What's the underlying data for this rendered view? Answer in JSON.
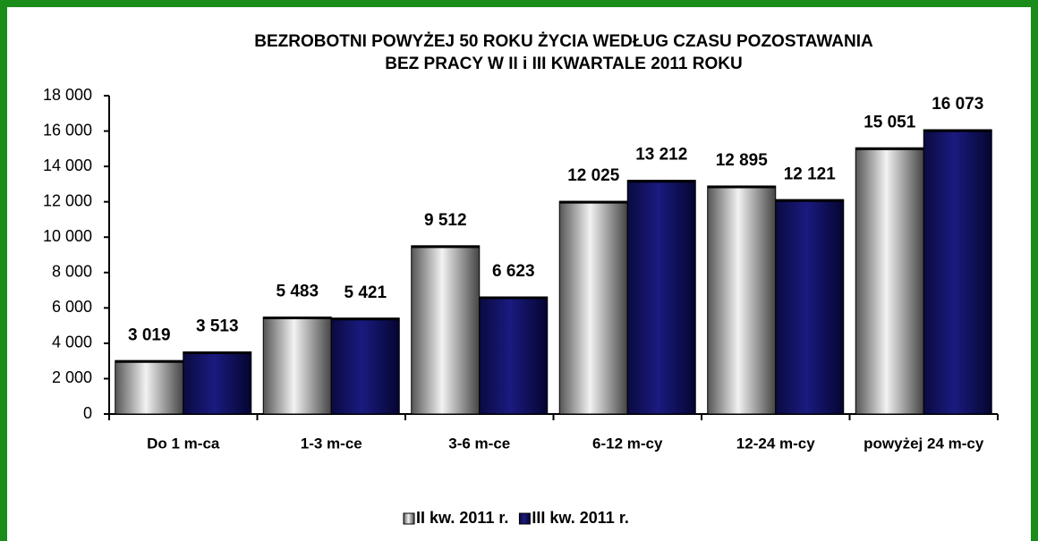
{
  "chart_data": {
    "type": "bar",
    "title": "BEZROBOTNI  POWYŻEJ 50 ROKU  ŻYCIA  WEDŁUG  CZASU POZOSTAWANIA",
    "subtitle": "BEZ PRACY W II i III KWARTALE 2011 ROKU",
    "categories": [
      "Do 1 m-ca",
      "1-3 m-ce",
      "3-6 m-ce",
      "6-12 m-cy",
      "12-24 m-cy",
      "powyżej 24 m-cy"
    ],
    "series": [
      {
        "name": "II kw. 2011 r.",
        "color": "#a0a0a0",
        "values": [
          3019,
          5483,
          9512,
          12025,
          12895,
          15051
        ],
        "value_labels": [
          "3 019",
          "5 483",
          "9 512",
          "12 025",
          "12 895",
          "15 051"
        ]
      },
      {
        "name": "III kw. 2011 r.",
        "color": "#1a1a80",
        "values": [
          3513,
          5421,
          6623,
          13212,
          12121,
          16073
        ],
        "value_labels": [
          "3 513",
          "5 421",
          "6 623",
          "13 212",
          "12 121",
          "16 073"
        ]
      }
    ],
    "ylim": [
      0,
      18000
    ],
    "yticks": [
      0,
      {
        "value": 2000,
        "label": "2 000"
      },
      {
        "value": 4000,
        "label": "4 000"
      },
      {
        "value": 6000,
        "label": "6 000"
      },
      {
        "value": 8000,
        "label": "8 000"
      },
      {
        "value": 10000,
        "label": "10 000"
      },
      {
        "value": 12000,
        "label": "12 000"
      },
      {
        "value": 14000,
        "label": "14 000"
      },
      {
        "value": 16000,
        "label": "16 000"
      },
      {
        "value": 18000,
        "label": "18 000"
      }
    ],
    "legend": "bottom"
  }
}
